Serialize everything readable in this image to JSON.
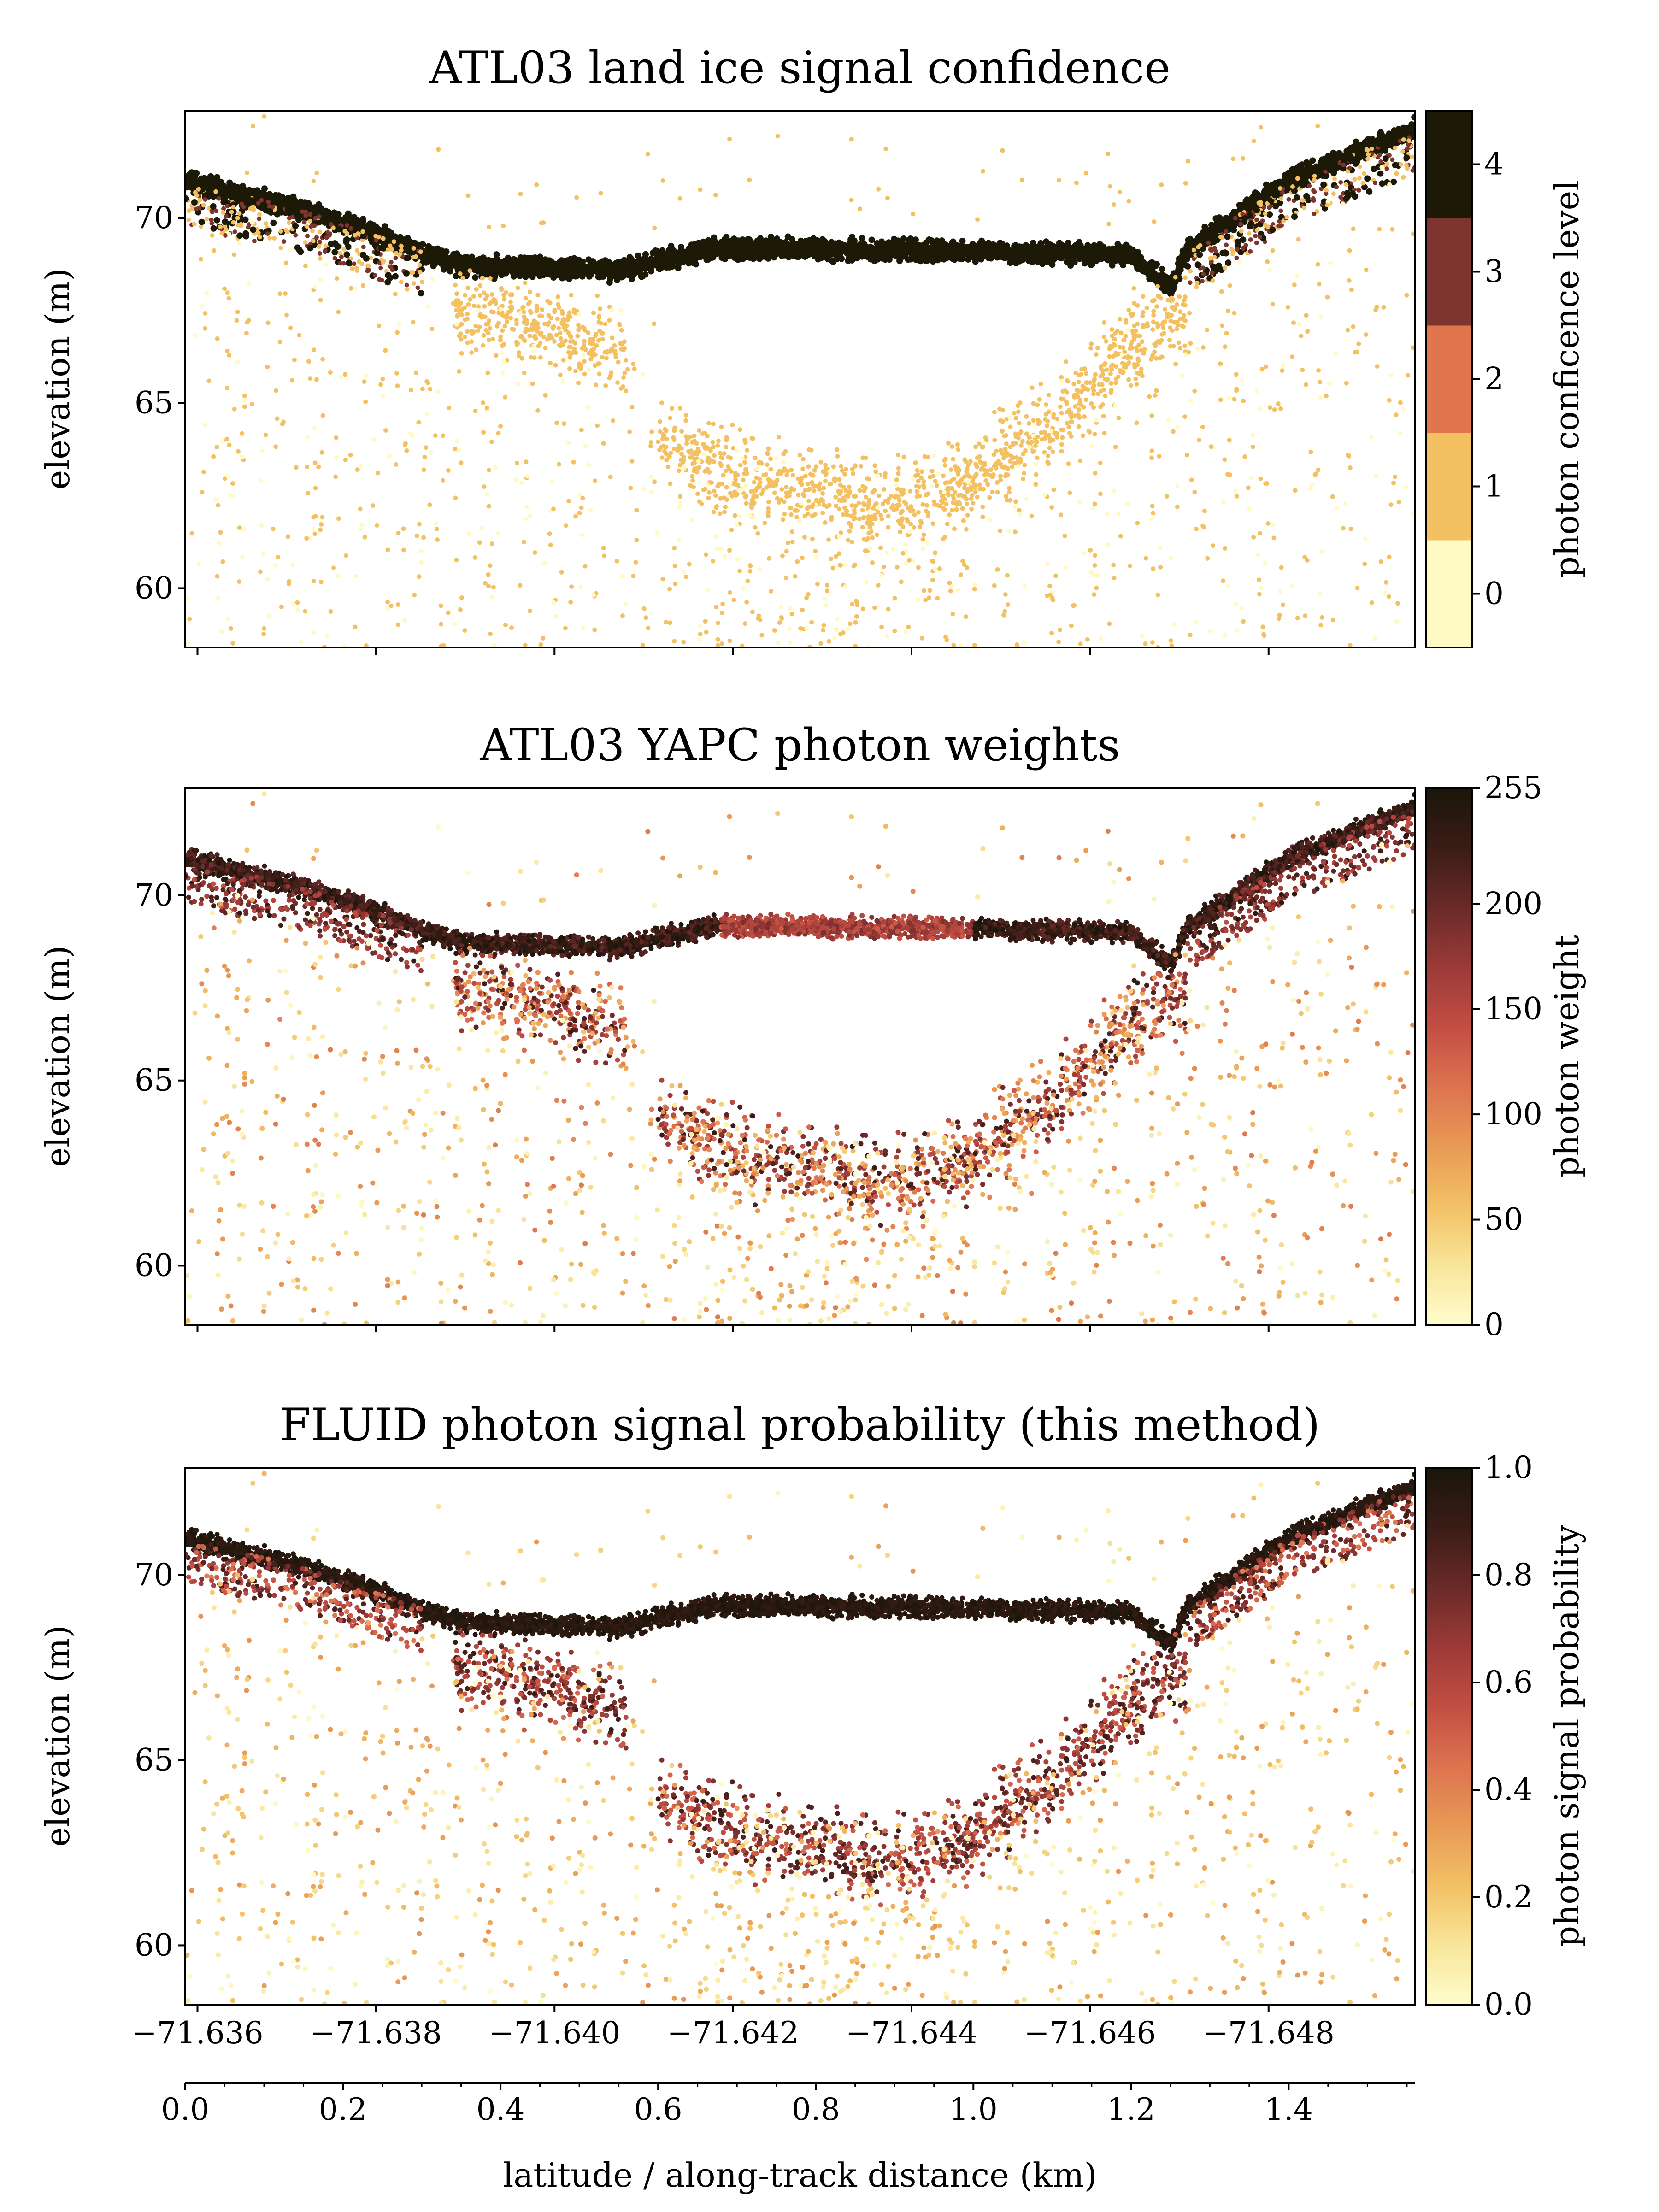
{
  "figure": {
    "xlabel": "latitude / along-track distance (km)"
  },
  "colors": {
    "cmap": [
      "#fffccc",
      "#f8e59a",
      "#f3c065",
      "#e89955",
      "#dd7350",
      "#c24e43",
      "#9b3a38",
      "#6a2a28",
      "#3a1c16",
      "#1a160a"
    ],
    "conf_levels": [
      "#fffac4",
      "#f3c062",
      "#e1754e",
      "#7e3530",
      "#1c1a06"
    ]
  },
  "chart_data": [
    {
      "type": "scatter",
      "title": "ATL03 land ice signal confidence",
      "ylabel": "elevation (m)",
      "ylim": [
        58.4,
        72.9
      ],
      "yticks": [
        60,
        65,
        70
      ],
      "ytick_labels": [
        "60",
        "65",
        "70"
      ],
      "xlim": [
        0.0,
        1.56
      ],
      "colorbar": {
        "label": "photon conficence level",
        "kind": "discrete",
        "range": [
          -0.5,
          4.5
        ],
        "ticks": [
          0,
          1,
          2,
          3,
          4
        ],
        "tick_labels": [
          "0",
          "1",
          "2",
          "3",
          "4"
        ]
      },
      "surface_profile": {
        "distance_km": [
          0.0,
          0.15,
          0.25,
          0.35,
          0.55,
          0.68,
          1.0,
          1.2,
          1.25,
          1.27,
          1.4,
          1.56
        ],
        "elevation_m": [
          71.0,
          70.2,
          69.5,
          68.7,
          68.6,
          69.2,
          69.1,
          69.0,
          68.1,
          69.1,
          71.0,
          72.4
        ],
        "confidence": 4
      },
      "subsurface_signal": {
        "distance_km": [
          0.35,
          0.55,
          0.6,
          0.75,
          0.9,
          1.0,
          1.1,
          1.2,
          1.27
        ],
        "elevation_m": [
          67.5,
          66.5,
          64.0,
          62.8,
          62.2,
          63.0,
          64.5,
          66.5,
          67.5
        ],
        "confidence": 1
      },
      "background_confidence": 0
    },
    {
      "type": "scatter",
      "title": "ATL03 YAPC photon weights",
      "ylabel": "elevation (m)",
      "ylim": [
        58.4,
        72.9
      ],
      "yticks": [
        60,
        65,
        70
      ],
      "ytick_labels": [
        "60",
        "65",
        "70"
      ],
      "xlim": [
        0.0,
        1.56
      ],
      "colorbar": {
        "label": "photon weight",
        "kind": "continuous",
        "range": [
          0,
          255
        ],
        "ticks": [
          0,
          50,
          100,
          150,
          200,
          255
        ],
        "tick_labels": [
          "0",
          "50",
          "100",
          "150",
          "200",
          "255"
        ]
      },
      "surface_weight": 250,
      "lake_surface_weight": 150,
      "subsurface_weight_range": [
        60,
        220
      ],
      "background_weight_range": [
        0,
        90
      ]
    },
    {
      "type": "scatter",
      "title": "FLUID photon signal probability (this method)",
      "ylabel": "elevation (m)",
      "ylim": [
        58.4,
        72.9
      ],
      "yticks": [
        60,
        65,
        70
      ],
      "ytick_labels": [
        "60",
        "65",
        "70"
      ],
      "xlim": [
        0.0,
        1.56
      ],
      "xticks_top_values": [
        -71.636,
        -71.638,
        -71.64,
        -71.642,
        -71.644,
        -71.646,
        -71.648
      ],
      "xticks_top_labels": [
        "−71.636",
        "−71.638",
        "−71.640",
        "−71.642",
        "−71.644",
        "−71.646",
        "−71.648"
      ],
      "xticks_bottom": [
        0.0,
        0.2,
        0.4,
        0.6,
        0.8,
        1.0,
        1.2,
        1.4
      ],
      "xticks_bottom_labels": [
        "0.0",
        "0.2",
        "0.4",
        "0.6",
        "0.8",
        "1.0",
        "1.2",
        "1.4"
      ],
      "colorbar": {
        "label": "photon signal probability",
        "kind": "continuous",
        "range": [
          0.0,
          1.0
        ],
        "ticks": [
          0.0,
          0.2,
          0.4,
          0.6,
          0.8,
          1.0
        ],
        "tick_labels": [
          "0.0",
          "0.2",
          "0.4",
          "0.6",
          "0.8",
          "1.0"
        ]
      },
      "surface_probability": 0.97,
      "subsurface_probability_range": [
        0.45,
        0.9
      ],
      "background_probability_range": [
        0.0,
        0.3
      ]
    }
  ]
}
